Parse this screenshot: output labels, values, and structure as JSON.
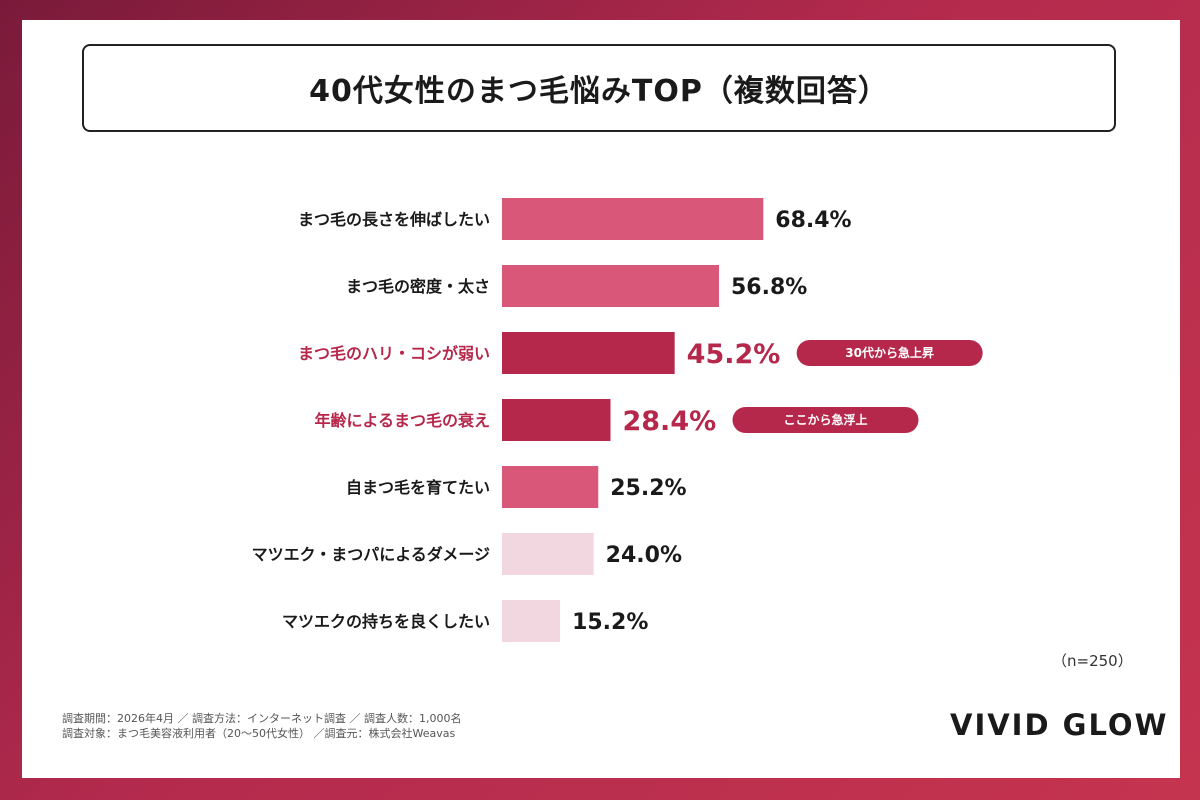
{
  "chart_data": {
    "type": "bar",
    "orientation": "horizontal",
    "title": "40代女性のまつ毛悩みTOP（複数回答）",
    "categories": [
      "まつ毛の長さを伸ばしたい",
      "まつ毛の密度・太さ",
      "まつ毛のハリ・コシが弱い",
      "年齢によるまつ毛の衰え",
      "自まつ毛を育てたい",
      "マツエク・まつパによるダメージ",
      "マツエクの持ちを良くしたい"
    ],
    "values": [
      68.4,
      56.8,
      45.2,
      28.4,
      25.2,
      24.0,
      15.2
    ],
    "value_labels": [
      "68.4%",
      "56.8%",
      "45.2%",
      "28.4%",
      "25.2%",
      "24.0%",
      "15.2%"
    ],
    "highlighted": [
      false,
      false,
      true,
      true,
      false,
      false,
      false
    ],
    "bar_colors": [
      "#d9587a",
      "#d9587a",
      "#b6284b",
      "#b6284b",
      "#d9587a",
      "#f2d7e0",
      "#f2d7e0"
    ],
    "highlight_color": "#b6284b",
    "annotations": [
      {
        "category_index": 2,
        "text": "30代から急上昇"
      },
      {
        "category_index": 3,
        "text": "ここから急浮上"
      }
    ],
    "xlim": [
      0,
      100
    ],
    "grid": false,
    "legend": "none"
  },
  "sample_size": "（n=250）",
  "notes": [
    "調査期間：2026年4月 ／ 調査方法：インターネット調査 ／ 調査人数：1,000名",
    "調査対象：まつ毛美容液利用者（20〜50代女性） ／調査元：株式会社Weavas"
  ],
  "brand": "VIVID GLOW"
}
